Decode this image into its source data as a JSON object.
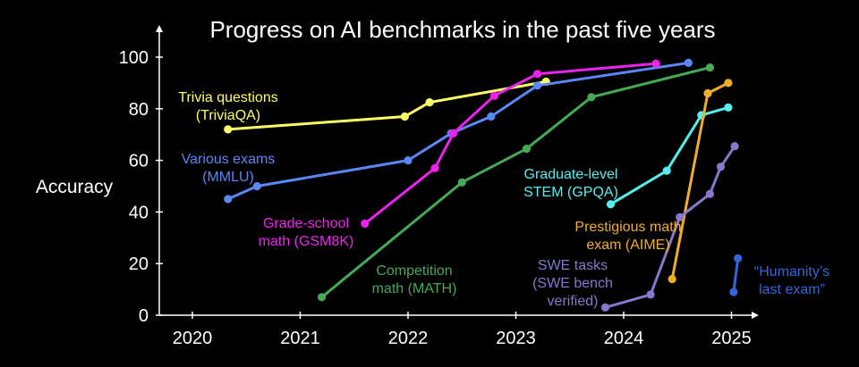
{
  "chart_data": {
    "type": "line",
    "title": "Progress on AI benchmarks in the past five years",
    "ylabel": "Accuracy",
    "xlabel": "",
    "xlim": [
      2019.7,
      2025.3
    ],
    "ylim": [
      0,
      100
    ],
    "x_ticks": [
      "2020",
      "2021",
      "2022",
      "2023",
      "2024",
      "2025"
    ],
    "y_ticks": [
      "0",
      "20",
      "40",
      "60",
      "80",
      "100"
    ],
    "grid": false,
    "legend": "inline labels",
    "series": [
      {
        "name": "Trivia questions (TriviaQA)",
        "label_lines": [
          "Trivia questions",
          "(TriviaQA)"
        ],
        "color": "#ffff66",
        "points": [
          [
            2020.33,
            72
          ],
          [
            2021.97,
            77
          ],
          [
            2022.2,
            82.5
          ],
          [
            2023.28,
            90.5
          ]
        ]
      },
      {
        "name": "Various exams (MMLU)",
        "label_lines": [
          "Various exams",
          "(MMLU)"
        ],
        "color": "#5b86f5",
        "points": [
          [
            2020.33,
            45
          ],
          [
            2020.6,
            50
          ],
          [
            2022.0,
            60
          ],
          [
            2022.4,
            70.5
          ],
          [
            2022.77,
            77
          ],
          [
            2023.2,
            89
          ],
          [
            2024.6,
            97.8
          ]
        ]
      },
      {
        "name": "Grade-school math (GSM8K)",
        "label_lines": [
          "Grade-school",
          "math (GSM8K)"
        ],
        "color": "#ee22ee",
        "points": [
          [
            2021.6,
            35.5
          ],
          [
            2022.25,
            57
          ],
          [
            2022.42,
            70.5
          ],
          [
            2022.8,
            85
          ],
          [
            2023.2,
            93.5
          ],
          [
            2024.3,
            97.5
          ]
        ]
      },
      {
        "name": "Competition math (MATH)",
        "label_lines": [
          "Competition",
          "math (MATH)"
        ],
        "color": "#44aa55",
        "points": [
          [
            2021.2,
            7
          ],
          [
            2022.5,
            51.5
          ],
          [
            2023.1,
            64.5
          ],
          [
            2023.7,
            84.5
          ],
          [
            2024.8,
            96
          ]
        ]
      },
      {
        "name": "Graduate-level STEM (GPQA)",
        "label_lines": [
          "Graduate-level",
          "STEM (GPQA)"
        ],
        "color": "#55eeee",
        "points": [
          [
            2023.88,
            43
          ],
          [
            2024.4,
            56
          ],
          [
            2024.72,
            77.5
          ],
          [
            2024.97,
            80.5
          ]
        ]
      },
      {
        "name": "Prestigious math exam (AIME)",
        "label_lines": [
          "Prestigious math",
          "exam (AIME)"
        ],
        "color": "#f0ad2a",
        "points": [
          [
            2024.45,
            14
          ],
          [
            2024.78,
            86
          ],
          [
            2024.97,
            90
          ]
        ]
      },
      {
        "name": "SWE tasks (SWE bench verified)",
        "label_lines": [
          "SWE tasks",
          "(SWE bench",
          "verified)"
        ],
        "color": "#8877cc",
        "points": [
          [
            2023.83,
            3
          ],
          [
            2024.25,
            8
          ],
          [
            2024.52,
            38
          ],
          [
            2024.8,
            47
          ],
          [
            2024.9,
            57.5
          ],
          [
            2025.03,
            65.5
          ]
        ]
      },
      {
        "name": "“Humanity’s last exam”",
        "label_lines": [
          "“Humanity’s",
          "last exam”"
        ],
        "color": "#3366dd",
        "points": [
          [
            2025.02,
            9
          ],
          [
            2025.06,
            22
          ]
        ]
      }
    ]
  }
}
